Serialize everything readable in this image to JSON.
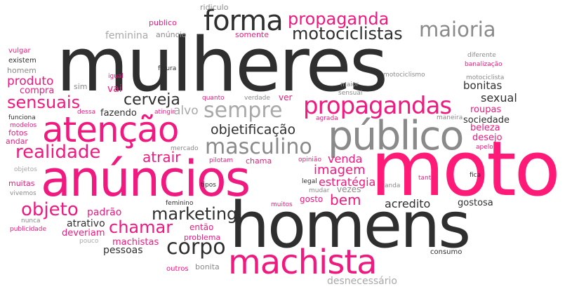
{
  "words": {
    "mulheres": "mulheres",
    "moto": "moto",
    "homens": "homens",
    "anuncios": "anúncios",
    "publico": "público",
    "machista": "machista",
    "atencao": "atenção",
    "forma": "forma",
    "propagandas": "propagandas",
    "propaganda": "propaganda",
    "motociclistas": "motociclistas",
    "maioria": "maioria",
    "sempre": "sempre",
    "masculino": "masculino",
    "realidade": "realidade",
    "sensuais": "sensuais",
    "cerveja": "cerveja",
    "corpo": "corpo",
    "marketing": "marketing",
    "objeto": "objeto",
    "chamar": "chamar",
    "objetificacao": "objetificação",
    "imagem": "imagem",
    "atrair": "atrair",
    "bem": "bem",
    "venda": "venda",
    "estrategia": "estratégia",
    "acredito": "acredito",
    "sexual": "sexual",
    "bonitas": "bonitas",
    "beleza": "beleza",
    "desejo": "desejo",
    "roupas": "roupas",
    "sociedade": "sociedade",
    "produto": "produto",
    "compra": "compra",
    "vai": "vai",
    "fazendo": "fazendo",
    "alvo": "alvo",
    "feminina": "feminina",
    "anuncio": "anúncio",
    "somente": "somente",
    "publico_small": "publico",
    "ridiculo": "ridiculo",
    "desnecessario": "desnecessário",
    "pessoas": "pessoas",
    "machistas": "machistas",
    "deveriam": "deveriam",
    "atrativo": "atrativo",
    "padrao": "padrão",
    "entao": "então",
    "problema": "problema",
    "gostosa": "gostosa",
    "gosto": "gosto",
    "vezes": "vezes",
    "chama": "chama",
    "consumo": "consumo",
    "bonita": "bonita",
    "outros": "outros",
    "pouco": "pouco",
    "nunca": "nunca",
    "publicidade": "publicidade",
    "muitas": "muitas",
    "vivemos": "vivemos",
    "objetos": "objetos",
    "fotos": "fotos",
    "andar": "andar",
    "modelos": "modelos",
    "funciona": "funciona",
    "dessa": "dessa",
    "homem": "homem",
    "existem": "existem",
    "vulgar": "vulgar",
    "igual": "igual",
    "sim": "sim",
    "figura": "figura",
    "quanto": "quanto",
    "verdade": "verdade",
    "ver": "ver",
    "maior": "maior",
    "sensual": "sensual",
    "motociclismo": "motociclismo",
    "motociclista": "motociclista",
    "diferente": "diferente",
    "banalizacao": "banalização",
    "maneira": "maneira",
    "agrada": "agrada",
    "apelo": "apelo",
    "atingir": "atingir",
    "mercado": "mercado",
    "pilotam": "pilotam",
    "opiniao": "opinião",
    "legal": "legal",
    "mudar": "mudar",
    "tanto": "tanto",
    "anda": "anda",
    "fica": "fica",
    "tipos": "tipos",
    "feminino": "feminino",
    "muitos": "muitos"
  },
  "colors": {
    "dark": "#2f2f2f",
    "pink": "#f0197f",
    "hot": "#ff1a78",
    "grey": "#8a8a8a",
    "light_grey": "#a8a8a8",
    "background": "#ffffff"
  }
}
